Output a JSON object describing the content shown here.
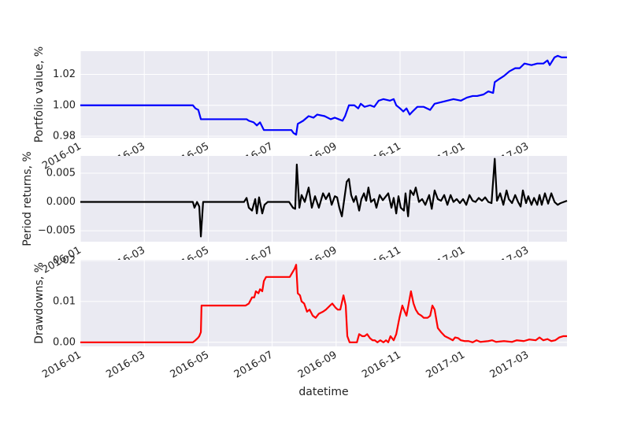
{
  "chart_data": [
    {
      "type": "line",
      "ylabel": "Portfolio value, %",
      "color": "#0000ff",
      "grid": true,
      "xlim": [
        0,
        15.22
      ],
      "ylim": [
        0.979,
        1.035
      ],
      "xticks": [
        {
          "value": 0,
          "label": "2016-01"
        },
        {
          "value": 2,
          "label": "2016-03"
        },
        {
          "value": 4,
          "label": "2016-05"
        },
        {
          "value": 6,
          "label": "2016-07"
        },
        {
          "value": 8,
          "label": "2016-09"
        },
        {
          "value": 10,
          "label": "2016-11"
        },
        {
          "value": 12,
          "label": "2017-01"
        },
        {
          "value": 14,
          "label": "2017-03"
        }
      ],
      "yticks": [
        0.98,
        {
          "value": 1,
          "label": "1.00"
        },
        1.02
      ],
      "x": [
        0,
        3.52,
        3.6,
        3.69,
        3.77,
        5.2,
        5.27,
        5.42,
        5.52,
        5.62,
        5.74,
        6.6,
        6.67,
        6.75,
        6.8,
        6.97,
        7.14,
        7.29,
        7.41,
        7.64,
        7.83,
        7.96,
        8.08,
        8.2,
        8.28,
        8.4,
        8.57,
        8.69,
        8.77,
        8.89,
        9.06,
        9.19,
        9.33,
        9.48,
        9.68,
        9.8,
        9.88,
        10.0,
        10.1,
        10.2,
        10.3,
        10.39,
        10.54,
        10.74,
        10.94,
        11.08,
        11.28,
        11.48,
        11.67,
        11.9,
        12.09,
        12.27,
        12.41,
        12.61,
        12.76,
        12.91,
        12.96,
        13.1,
        13.25,
        13.42,
        13.6,
        13.74,
        13.89,
        14.11,
        14.29,
        14.48,
        14.61,
        14.68,
        14.83,
        14.93,
        15.05,
        15.22
      ],
      "values": [
        1.0,
        1.0,
        0.998,
        0.997,
        0.991,
        0.991,
        0.99,
        0.989,
        0.987,
        0.989,
        0.984,
        0.984,
        0.982,
        0.981,
        0.988,
        0.99,
        0.993,
        0.992,
        0.994,
        0.993,
        0.991,
        0.992,
        0.991,
        0.99,
        0.993,
        1.0,
        1.0,
        0.998,
        1.001,
        0.999,
        1.0,
        0.999,
        1.003,
        1.004,
        1.003,
        1.004,
        1.0,
        0.998,
        0.996,
        0.998,
        0.994,
        0.996,
        0.999,
        0.999,
        0.997,
        1.001,
        1.002,
        1.003,
        1.004,
        1.003,
        1.005,
        1.006,
        1.006,
        1.007,
        1.009,
        1.008,
        1.015,
        1.017,
        1.019,
        1.022,
        1.024,
        1.024,
        1.027,
        1.026,
        1.027,
        1.027,
        1.029,
        1.026,
        1.031,
        1.032,
        1.031,
        1.031
      ]
    },
    {
      "type": "line",
      "ylabel": "Period returns, %",
      "color": "#000000",
      "grid": true,
      "xlim": [
        0,
        15.22
      ],
      "ylim": [
        -0.0069,
        0.008
      ],
      "xticks": [
        {
          "value": 0,
          "label": "2016-01"
        },
        {
          "value": 2,
          "label": "2016-03"
        },
        {
          "value": 4,
          "label": "2016-05"
        },
        {
          "value": 6,
          "label": "2016-07"
        },
        {
          "value": 8,
          "label": "2016-09"
        },
        {
          "value": 10,
          "label": "2016-11"
        },
        {
          "value": 12,
          "label": "2017-01"
        },
        {
          "value": 14,
          "label": "2017-03"
        }
      ],
      "yticks": [
        {
          "value": -0.005,
          "label": "−0.005"
        },
        {
          "value": 0,
          "label": "0.000"
        },
        0.005
      ],
      "x": [
        0,
        3.52,
        3.57,
        3.65,
        3.72,
        3.77,
        3.84,
        5.12,
        5.2,
        5.27,
        5.37,
        5.47,
        5.52,
        5.59,
        5.69,
        5.76,
        5.86,
        6.53,
        6.65,
        6.72,
        6.77,
        6.85,
        6.92,
        7.02,
        7.14,
        7.24,
        7.34,
        7.46,
        7.59,
        7.68,
        7.78,
        7.86,
        7.96,
        8.03,
        8.1,
        8.18,
        8.25,
        8.33,
        8.4,
        8.47,
        8.55,
        8.62,
        8.72,
        8.79,
        8.87,
        8.94,
        9.01,
        9.09,
        9.19,
        9.26,
        9.36,
        9.46,
        9.56,
        9.63,
        9.73,
        9.8,
        9.88,
        9.95,
        10.02,
        10.12,
        10.17,
        10.25,
        10.32,
        10.42,
        10.49,
        10.59,
        10.69,
        10.79,
        10.91,
        10.99,
        11.08,
        11.18,
        11.28,
        11.38,
        11.48,
        11.58,
        11.67,
        11.77,
        11.87,
        11.97,
        12.07,
        12.17,
        12.27,
        12.36,
        12.46,
        12.56,
        12.66,
        12.76,
        12.86,
        12.96,
        13.03,
        13.13,
        13.23,
        13.33,
        13.4,
        13.5,
        13.6,
        13.69,
        13.77,
        13.84,
        13.94,
        14.01,
        14.11,
        14.19,
        14.29,
        14.36,
        14.43,
        14.53,
        14.63,
        14.73,
        14.83,
        14.93,
        15.02,
        15.12,
        15.22
      ],
      "values": [
        0,
        0,
        -0.001,
        0,
        -0.0008,
        -0.006,
        0,
        0,
        0.0007,
        -0.001,
        -0.0015,
        0.0005,
        -0.002,
        0.0008,
        -0.002,
        -0.0005,
        0,
        0,
        -0.001,
        -0.0012,
        0.0065,
        -0.001,
        0.0012,
        0,
        0.0025,
        -0.001,
        0.001,
        -0.001,
        0.0015,
        0.0005,
        0.0015,
        -0.0005,
        0.001,
        0.0008,
        -0.001,
        -0.0025,
        0.0003,
        0.0035,
        0.004,
        0.0012,
        0,
        0.001,
        -0.0015,
        0.0005,
        0.0015,
        0.0002,
        0.0025,
        0,
        0.0005,
        -0.001,
        0.0012,
        0.0003,
        0.001,
        0.0015,
        -0.001,
        0.0007,
        -0.002,
        0.001,
        -0.001,
        -0.0015,
        0.0015,
        -0.0025,
        0.002,
        0.0012,
        0.0025,
        0,
        0.0005,
        -0.0005,
        0.0012,
        -0.0012,
        0.002,
        0.0005,
        0.0002,
        0.0012,
        -0.0005,
        0.0012,
        0,
        0.0005,
        -0.0002,
        0.0005,
        -0.0005,
        0.0012,
        0.0002,
        0,
        0.0007,
        0.0002,
        0.0008,
        0,
        -0.0002,
        0.0075,
        0.0002,
        0.0015,
        -0.0005,
        0.002,
        0.0005,
        -0.0002,
        0.0012,
        0,
        -0.0008,
        0.002,
        -0.0002,
        0.001,
        -0.0005,
        0.0007,
        -0.0005,
        0.0012,
        -0.0005,
        0.0015,
        -0.0003,
        0.0015,
        0,
        -0.0005,
        -0.0002,
        0,
        0.0002
      ]
    },
    {
      "type": "line",
      "ylabel": "Drawdowns, %",
      "xlabel": "datetime",
      "color": "#ff0000",
      "grid": true,
      "xlim": [
        0,
        15.22
      ],
      "ylim": [
        -0.001,
        0.0202
      ],
      "xticks": [
        {
          "value": 0,
          "label": "2016-01"
        },
        {
          "value": 2,
          "label": "2016-03"
        },
        {
          "value": 4,
          "label": "2016-05"
        },
        {
          "value": 6,
          "label": "2016-07"
        },
        {
          "value": 8,
          "label": "2016-09"
        },
        {
          "value": 10,
          "label": "2016-11"
        },
        {
          "value": 12,
          "label": "2017-01"
        },
        {
          "value": 14,
          "label": "2017-03"
        }
      ],
      "yticks": [
        {
          "value": 0,
          "label": "0.00"
        },
        0.01,
        0.02
      ],
      "x": [
        0,
        3.52,
        3.6,
        3.67,
        3.72,
        3.77,
        3.79,
        5.17,
        5.27,
        5.37,
        5.44,
        5.49,
        5.57,
        5.62,
        5.69,
        5.74,
        5.81,
        6.55,
        6.7,
        6.75,
        6.8,
        6.87,
        6.92,
        7.0,
        7.09,
        7.17,
        7.27,
        7.36,
        7.46,
        7.59,
        7.68,
        7.81,
        7.88,
        7.98,
        8.05,
        8.13,
        8.23,
        8.3,
        8.35,
        8.42,
        8.65,
        8.72,
        8.82,
        8.89,
        8.97,
        9.06,
        9.14,
        9.21,
        9.29,
        9.38,
        9.48,
        9.56,
        9.63,
        9.7,
        9.8,
        9.88,
        9.98,
        10.07,
        10.12,
        10.2,
        10.27,
        10.34,
        10.42,
        10.49,
        10.57,
        10.67,
        10.74,
        10.86,
        10.94,
        11.01,
        11.08,
        11.18,
        11.28,
        11.4,
        11.53,
        11.65,
        11.72,
        11.82,
        11.9,
        12.02,
        12.14,
        12.27,
        12.39,
        12.51,
        12.64,
        12.76,
        12.88,
        13.0,
        13.25,
        13.5,
        13.65,
        13.87,
        14.04,
        14.24,
        14.36,
        14.48,
        14.61,
        14.73,
        14.85,
        14.98,
        15.1,
        15.22
      ],
      "values": [
        0,
        0,
        0.0005,
        0.001,
        0.0015,
        0.0025,
        0.009,
        0.009,
        0.0095,
        0.011,
        0.011,
        0.0125,
        0.012,
        0.013,
        0.0125,
        0.015,
        0.016,
        0.016,
        0.018,
        0.019,
        0.012,
        0.0115,
        0.01,
        0.0095,
        0.0075,
        0.008,
        0.0065,
        0.006,
        0.007,
        0.0075,
        0.008,
        0.009,
        0.0095,
        0.0085,
        0.008,
        0.008,
        0.0115,
        0.009,
        0.0015,
        0,
        0,
        0.002,
        0.0015,
        0.0015,
        0.002,
        0.001,
        0.0005,
        0.0005,
        0,
        0.0005,
        0,
        0.0005,
        0,
        0.0015,
        0.0005,
        0.002,
        0.006,
        0.009,
        0.008,
        0.0065,
        0.0095,
        0.0125,
        0.0095,
        0.008,
        0.007,
        0.0065,
        0.006,
        0.006,
        0.0065,
        0.009,
        0.008,
        0.0035,
        0.0025,
        0.0015,
        0.001,
        0.0005,
        0.0012,
        0.001,
        0.0005,
        0.0003,
        0.0003,
        0,
        0.0005,
        0.0001,
        0.0002,
        0.0003,
        0.0005,
        0.0001,
        0.0003,
        0.0001,
        0.0005,
        0.0003,
        0.0007,
        0.0005,
        0.0012,
        0.0005,
        0.0008,
        0.0003,
        0.0005,
        0.0012,
        0.0015,
        0.0015
      ]
    }
  ]
}
